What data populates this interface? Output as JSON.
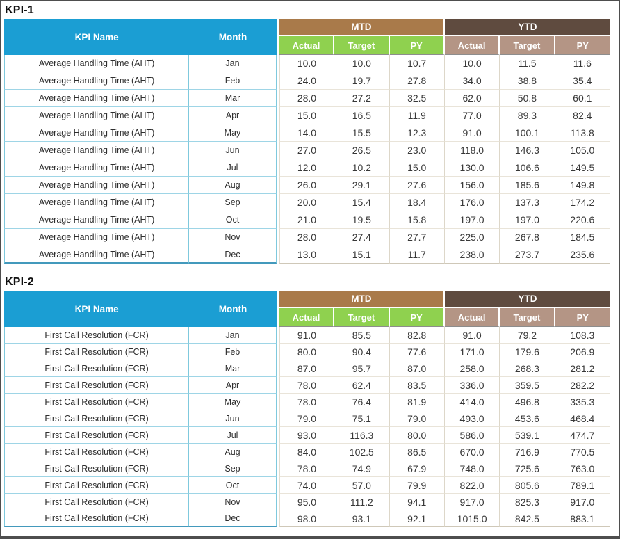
{
  "colors": {
    "header_blue": "#1b9ed3",
    "mtd_group_brown": "#a97a4a",
    "ytd_group_brown": "#5f4b3f",
    "mtd_sub_green": "#8fd14f",
    "ytd_sub_tan": "#b49585",
    "left_grid_blue": "#7fc9dd",
    "data_grid_tan": "#ddd7c9",
    "page_border_gray": "#4e4e4e"
  },
  "header": {
    "kpi_name_label": "KPI Name",
    "month_label": "Month",
    "mtd_label": "MTD",
    "ytd_label": "YTD",
    "sub_labels": [
      "Actual",
      "Target",
      "PY"
    ]
  },
  "tables": [
    {
      "title": "KPI-1",
      "rows": [
        {
          "kpi": "Average Handling Time (AHT)",
          "month": "Jan",
          "values": [
            "10.0",
            "10.0",
            "10.7",
            "10.0",
            "11.5",
            "11.6"
          ]
        },
        {
          "kpi": "Average Handling Time (AHT)",
          "month": "Feb",
          "values": [
            "24.0",
            "19.7",
            "27.8",
            "34.0",
            "38.8",
            "35.4"
          ]
        },
        {
          "kpi": "Average Handling Time (AHT)",
          "month": "Mar",
          "values": [
            "28.0",
            "27.2",
            "32.5",
            "62.0",
            "50.8",
            "60.1"
          ]
        },
        {
          "kpi": "Average Handling Time (AHT)",
          "month": "Apr",
          "values": [
            "15.0",
            "16.5",
            "11.9",
            "77.0",
            "89.3",
            "82.4"
          ]
        },
        {
          "kpi": "Average Handling Time (AHT)",
          "month": "May",
          "values": [
            "14.0",
            "15.5",
            "12.3",
            "91.0",
            "100.1",
            "113.8"
          ]
        },
        {
          "kpi": "Average Handling Time (AHT)",
          "month": "Jun",
          "values": [
            "27.0",
            "26.5",
            "23.0",
            "118.0",
            "146.3",
            "105.0"
          ]
        },
        {
          "kpi": "Average Handling Time (AHT)",
          "month": "Jul",
          "values": [
            "12.0",
            "10.2",
            "15.0",
            "130.0",
            "106.6",
            "149.5"
          ]
        },
        {
          "kpi": "Average Handling Time (AHT)",
          "month": "Aug",
          "values": [
            "26.0",
            "29.1",
            "27.6",
            "156.0",
            "185.6",
            "149.8"
          ]
        },
        {
          "kpi": "Average Handling Time (AHT)",
          "month": "Sep",
          "values": [
            "20.0",
            "15.4",
            "18.4",
            "176.0",
            "137.3",
            "174.2"
          ]
        },
        {
          "kpi": "Average Handling Time (AHT)",
          "month": "Oct",
          "values": [
            "21.0",
            "19.5",
            "15.8",
            "197.0",
            "197.0",
            "220.6"
          ]
        },
        {
          "kpi": "Average Handling Time (AHT)",
          "month": "Nov",
          "values": [
            "28.0",
            "27.4",
            "27.7",
            "225.0",
            "267.8",
            "184.5"
          ]
        },
        {
          "kpi": "Average Handling Time (AHT)",
          "month": "Dec",
          "values": [
            "13.0",
            "15.1",
            "11.7",
            "238.0",
            "273.7",
            "235.6"
          ]
        }
      ]
    },
    {
      "title": "KPI-2",
      "rows": [
        {
          "kpi": "First Call Resolution (FCR)",
          "month": "Jan",
          "values": [
            "91.0",
            "85.5",
            "82.8",
            "91.0",
            "79.2",
            "108.3"
          ]
        },
        {
          "kpi": "First Call Resolution (FCR)",
          "month": "Feb",
          "values": [
            "80.0",
            "90.4",
            "77.6",
            "171.0",
            "179.6",
            "206.9"
          ]
        },
        {
          "kpi": "First Call Resolution (FCR)",
          "month": "Mar",
          "values": [
            "87.0",
            "95.7",
            "87.0",
            "258.0",
            "268.3",
            "281.2"
          ]
        },
        {
          "kpi": "First Call Resolution (FCR)",
          "month": "Apr",
          "values": [
            "78.0",
            "62.4",
            "83.5",
            "336.0",
            "359.5",
            "282.2"
          ]
        },
        {
          "kpi": "First Call Resolution (FCR)",
          "month": "May",
          "values": [
            "78.0",
            "76.4",
            "81.9",
            "414.0",
            "496.8",
            "335.3"
          ]
        },
        {
          "kpi": "First Call Resolution (FCR)",
          "month": "Jun",
          "values": [
            "79.0",
            "75.1",
            "79.0",
            "493.0",
            "453.6",
            "468.4"
          ]
        },
        {
          "kpi": "First Call Resolution (FCR)",
          "month": "Jul",
          "values": [
            "93.0",
            "116.3",
            "80.0",
            "586.0",
            "539.1",
            "474.7"
          ]
        },
        {
          "kpi": "First Call Resolution (FCR)",
          "month": "Aug",
          "values": [
            "84.0",
            "102.5",
            "86.5",
            "670.0",
            "716.9",
            "770.5"
          ]
        },
        {
          "kpi": "First Call Resolution (FCR)",
          "month": "Sep",
          "values": [
            "78.0",
            "74.9",
            "67.9",
            "748.0",
            "725.6",
            "763.0"
          ]
        },
        {
          "kpi": "First Call Resolution (FCR)",
          "month": "Oct",
          "values": [
            "74.0",
            "57.0",
            "79.9",
            "822.0",
            "805.6",
            "789.1"
          ]
        },
        {
          "kpi": "First Call Resolution (FCR)",
          "month": "Nov",
          "values": [
            "95.0",
            "111.2",
            "94.1",
            "917.0",
            "825.3",
            "917.0"
          ]
        },
        {
          "kpi": "First Call Resolution (FCR)",
          "month": "Dec",
          "values": [
            "98.0",
            "93.1",
            "92.1",
            "1015.0",
            "842.5",
            "883.1"
          ]
        }
      ]
    }
  ]
}
